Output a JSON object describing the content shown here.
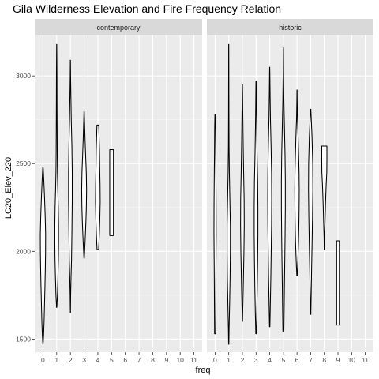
{
  "chart_data": {
    "type": "violin",
    "title": "Gila Wilderness Elevation and Fire Frequency Relation",
    "xlabel": "freq",
    "ylabel": "LC20_Elev_220",
    "x_ticks": [
      0,
      1,
      2,
      3,
      4,
      5,
      6,
      7,
      8,
      9,
      10,
      11
    ],
    "y_ticks": [
      1500,
      2000,
      2500,
      3000
    ],
    "xlim": [
      -0.6,
      11.6
    ],
    "ylim": [
      1425,
      3235
    ],
    "grid": true,
    "legend": "none",
    "colors": {
      "panel_bg": "#ebebeb",
      "strip_bg": "#d9d9d9",
      "grid_major": "#ffffff",
      "grid_minor": "#f5f5f5",
      "outline": "#000000",
      "fill": "#ffffff"
    },
    "facets": [
      {
        "label": "contemporary",
        "violins": [
          {
            "freq": 0,
            "profile": [
              [
                1470,
                0.02
              ],
              [
                1520,
                0.1
              ],
              [
                1600,
                0.18
              ],
              [
                1700,
                0.25
              ],
              [
                1800,
                0.32
              ],
              [
                1900,
                0.38
              ],
              [
                2000,
                0.42
              ],
              [
                2100,
                0.43
              ],
              [
                2200,
                0.36
              ],
              [
                2300,
                0.26
              ],
              [
                2400,
                0.14
              ],
              [
                2480,
                0.03
              ]
            ]
          },
          {
            "freq": 1,
            "profile": [
              [
                1680,
                0.02
              ],
              [
                1750,
                0.12
              ],
              [
                1850,
                0.2
              ],
              [
                1950,
                0.27
              ],
              [
                2050,
                0.3
              ],
              [
                2150,
                0.3
              ],
              [
                2250,
                0.26
              ],
              [
                2350,
                0.18
              ],
              [
                2450,
                0.12
              ],
              [
                2550,
                0.09
              ],
              [
                2700,
                0.07
              ],
              [
                2850,
                0.05
              ],
              [
                3000,
                0.04
              ],
              [
                3180,
                0.01
              ]
            ]
          },
          {
            "freq": 2,
            "profile": [
              [
                1650,
                0.01
              ],
              [
                1750,
                0.04
              ],
              [
                1850,
                0.1
              ],
              [
                1950,
                0.18
              ],
              [
                2100,
                0.24
              ],
              [
                2300,
                0.3
              ],
              [
                2450,
                0.3
              ],
              [
                2600,
                0.24
              ],
              [
                2750,
                0.14
              ],
              [
                2900,
                0.07
              ],
              [
                3000,
                0.03
              ],
              [
                3090,
                0.01
              ]
            ]
          },
          {
            "freq": 3,
            "profile": [
              [
                1960,
                0.03
              ],
              [
                2050,
                0.15
              ],
              [
                2150,
                0.27
              ],
              [
                2250,
                0.36
              ],
              [
                2350,
                0.4
              ],
              [
                2450,
                0.35
              ],
              [
                2550,
                0.24
              ],
              [
                2650,
                0.14
              ],
              [
                2750,
                0.06
              ],
              [
                2800,
                0.02
              ]
            ]
          },
          {
            "freq": 4,
            "profile": [
              [
                2010,
                0.13
              ],
              [
                2080,
                0.22
              ],
              [
                2180,
                0.32
              ],
              [
                2280,
                0.38
              ],
              [
                2380,
                0.36
              ],
              [
                2480,
                0.3
              ],
              [
                2580,
                0.26
              ],
              [
                2680,
                0.18
              ],
              [
                2720,
                0.15
              ]
            ]
          },
          {
            "freq": 5,
            "profile": [
              [
                2090,
                0.3
              ],
              [
                2200,
                0.3
              ],
              [
                2300,
                0.3
              ],
              [
                2400,
                0.3
              ],
              [
                2500,
                0.3
              ],
              [
                2580,
                0.3
              ]
            ]
          }
        ]
      },
      {
        "label": "historic",
        "violins": [
          {
            "freq": 0,
            "profile": [
              [
                1530,
                0.08
              ],
              [
                1650,
                0.1
              ],
              [
                1800,
                0.12
              ],
              [
                1950,
                0.15
              ],
              [
                2100,
                0.18
              ],
              [
                2250,
                0.17
              ],
              [
                2400,
                0.14
              ],
              [
                2550,
                0.1
              ],
              [
                2700,
                0.07
              ],
              [
                2780,
                0.03
              ]
            ]
          },
          {
            "freq": 1,
            "profile": [
              [
                1470,
                0.02
              ],
              [
                1550,
                0.05
              ],
              [
                1700,
                0.14
              ],
              [
                1850,
                0.22
              ],
              [
                2000,
                0.26
              ],
              [
                2150,
                0.26
              ],
              [
                2300,
                0.18
              ],
              [
                2450,
                0.1
              ],
              [
                2600,
                0.05
              ],
              [
                2800,
                0.03
              ],
              [
                3000,
                0.02
              ],
              [
                3180,
                0.01
              ]
            ]
          },
          {
            "freq": 2,
            "profile": [
              [
                1600,
                0.02
              ],
              [
                1700,
                0.08
              ],
              [
                1850,
                0.17
              ],
              [
                2000,
                0.25
              ],
              [
                2150,
                0.3
              ],
              [
                2300,
                0.28
              ],
              [
                2450,
                0.2
              ],
              [
                2600,
                0.13
              ],
              [
                2750,
                0.08
              ],
              [
                2900,
                0.03
              ],
              [
                2950,
                0.01
              ]
            ]
          },
          {
            "freq": 3,
            "profile": [
              [
                1530,
                0.04
              ],
              [
                1650,
                0.12
              ],
              [
                1800,
                0.2
              ],
              [
                1950,
                0.26
              ],
              [
                2100,
                0.3
              ],
              [
                2250,
                0.3
              ],
              [
                2400,
                0.26
              ],
              [
                2550,
                0.17
              ],
              [
                2700,
                0.1
              ],
              [
                2850,
                0.05
              ],
              [
                2970,
                0.02
              ]
            ]
          },
          {
            "freq": 4,
            "profile": [
              [
                1570,
                0.03
              ],
              [
                1700,
                0.1
              ],
              [
                1850,
                0.18
              ],
              [
                2000,
                0.24
              ],
              [
                2150,
                0.3
              ],
              [
                2300,
                0.32
              ],
              [
                2450,
                0.3
              ],
              [
                2600,
                0.22
              ],
              [
                2750,
                0.12
              ],
              [
                2900,
                0.06
              ],
              [
                3050,
                0.01
              ]
            ]
          },
          {
            "freq": 5,
            "profile": [
              [
                1545,
                0.08
              ],
              [
                1650,
                0.12
              ],
              [
                1800,
                0.17
              ],
              [
                1950,
                0.23
              ],
              [
                2100,
                0.28
              ],
              [
                2250,
                0.32
              ],
              [
                2400,
                0.32
              ],
              [
                2550,
                0.27
              ],
              [
                2700,
                0.18
              ],
              [
                2850,
                0.09
              ],
              [
                3000,
                0.04
              ],
              [
                3160,
                0.01
              ]
            ]
          },
          {
            "freq": 6,
            "profile": [
              [
                1860,
                0.03
              ],
              [
                1950,
                0.14
              ],
              [
                2050,
                0.24
              ],
              [
                2150,
                0.3
              ],
              [
                2250,
                0.34
              ],
              [
                2350,
                0.36
              ],
              [
                2450,
                0.33
              ],
              [
                2550,
                0.26
              ],
              [
                2650,
                0.18
              ],
              [
                2750,
                0.08
              ],
              [
                2850,
                0.03
              ],
              [
                2920,
                0.01
              ]
            ]
          },
          {
            "freq": 7,
            "profile": [
              [
                1640,
                0.03
              ],
              [
                1750,
                0.08
              ],
              [
                1900,
                0.15
              ],
              [
                2050,
                0.23
              ],
              [
                2200,
                0.3
              ],
              [
                2350,
                0.35
              ],
              [
                2500,
                0.33
              ],
              [
                2650,
                0.22
              ],
              [
                2750,
                0.1
              ],
              [
                2810,
                0.03
              ]
            ]
          },
          {
            "freq": 8,
            "profile": [
              [
                2010,
                0.02
              ],
              [
                2080,
                0.04
              ],
              [
                2180,
                0.12
              ],
              [
                2280,
                0.2
              ],
              [
                2380,
                0.3
              ],
              [
                2450,
                0.4
              ],
              [
                2520,
                0.42
              ],
              [
                2600,
                0.42
              ]
            ]
          },
          {
            "freq": 9,
            "profile": [
              [
                1580,
                0.22
              ],
              [
                1700,
                0.22
              ],
              [
                1800,
                0.22
              ],
              [
                1900,
                0.22
              ],
              [
                2000,
                0.22
              ],
              [
                2060,
                0.22
              ]
            ]
          }
        ]
      }
    ]
  }
}
